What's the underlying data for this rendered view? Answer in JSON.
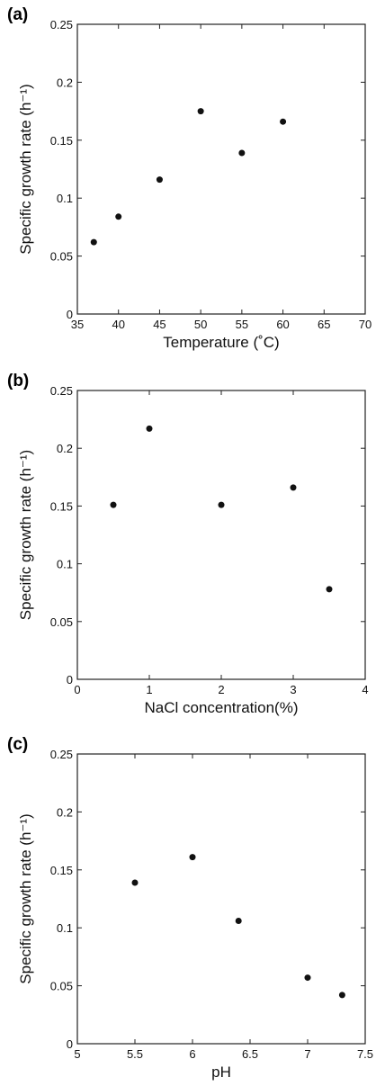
{
  "chart_data": [
    {
      "type": "scatter",
      "panel_label": "(a)",
      "xlabel": "Temperature (˚C)",
      "ylabel": "Specific growth rate (h⁻¹)",
      "xlim": [
        35,
        70
      ],
      "ylim": [
        0,
        0.25
      ],
      "x_ticks": [
        35,
        40,
        45,
        50,
        55,
        60,
        65,
        70
      ],
      "x_tick_labels": [
        "35",
        "40",
        "45",
        "50",
        "55",
        "60",
        "65",
        "70"
      ],
      "y_ticks": [
        0,
        0.05,
        0.1,
        0.15,
        0.2,
        0.25
      ],
      "y_tick_labels": [
        "0",
        "0.05",
        "0.1",
        "0.15",
        "0.2",
        "0.25"
      ],
      "x": [
        37,
        40,
        45,
        50,
        55,
        60
      ],
      "y": [
        0.062,
        0.084,
        0.116,
        0.175,
        0.139,
        0.166
      ]
    },
    {
      "type": "scatter",
      "panel_label": "(b)",
      "xlabel": "NaCl concentration(%)",
      "ylabel": "Specific growth rate (h⁻¹)",
      "xlim": [
        0,
        4
      ],
      "ylim": [
        0,
        0.25
      ],
      "x_ticks": [
        0,
        1,
        2,
        3,
        4
      ],
      "x_tick_labels": [
        "0",
        "1",
        "2",
        "3",
        "4"
      ],
      "y_ticks": [
        0,
        0.05,
        0.1,
        0.15,
        0.2,
        0.25
      ],
      "y_tick_labels": [
        "0",
        "0.05",
        "0.1",
        "0.15",
        "0.2",
        "0.25"
      ],
      "x": [
        0.5,
        1.0,
        2.0,
        3.0,
        3.5
      ],
      "y": [
        0.151,
        0.217,
        0.151,
        0.166,
        0.078
      ]
    },
    {
      "type": "scatter",
      "panel_label": "(c)",
      "xlabel": "pH",
      "ylabel": "Specific growth rate (h⁻¹)",
      "xlim": [
        5,
        7.5
      ],
      "ylim": [
        0,
        0.25
      ],
      "x_ticks": [
        5,
        5.5,
        6,
        6.5,
        7,
        7.5
      ],
      "x_tick_labels": [
        "5",
        "5.5",
        "6",
        "6.5",
        "7",
        "7.5"
      ],
      "y_ticks": [
        0,
        0.05,
        0.1,
        0.15,
        0.2,
        0.25
      ],
      "y_tick_labels": [
        "0",
        "0.05",
        "0.1",
        "0.15",
        "0.2",
        "0.25"
      ],
      "x": [
        5.5,
        6.0,
        6.4,
        7.0,
        7.3
      ],
      "y": [
        0.139,
        0.161,
        0.106,
        0.057,
        0.042
      ]
    }
  ]
}
